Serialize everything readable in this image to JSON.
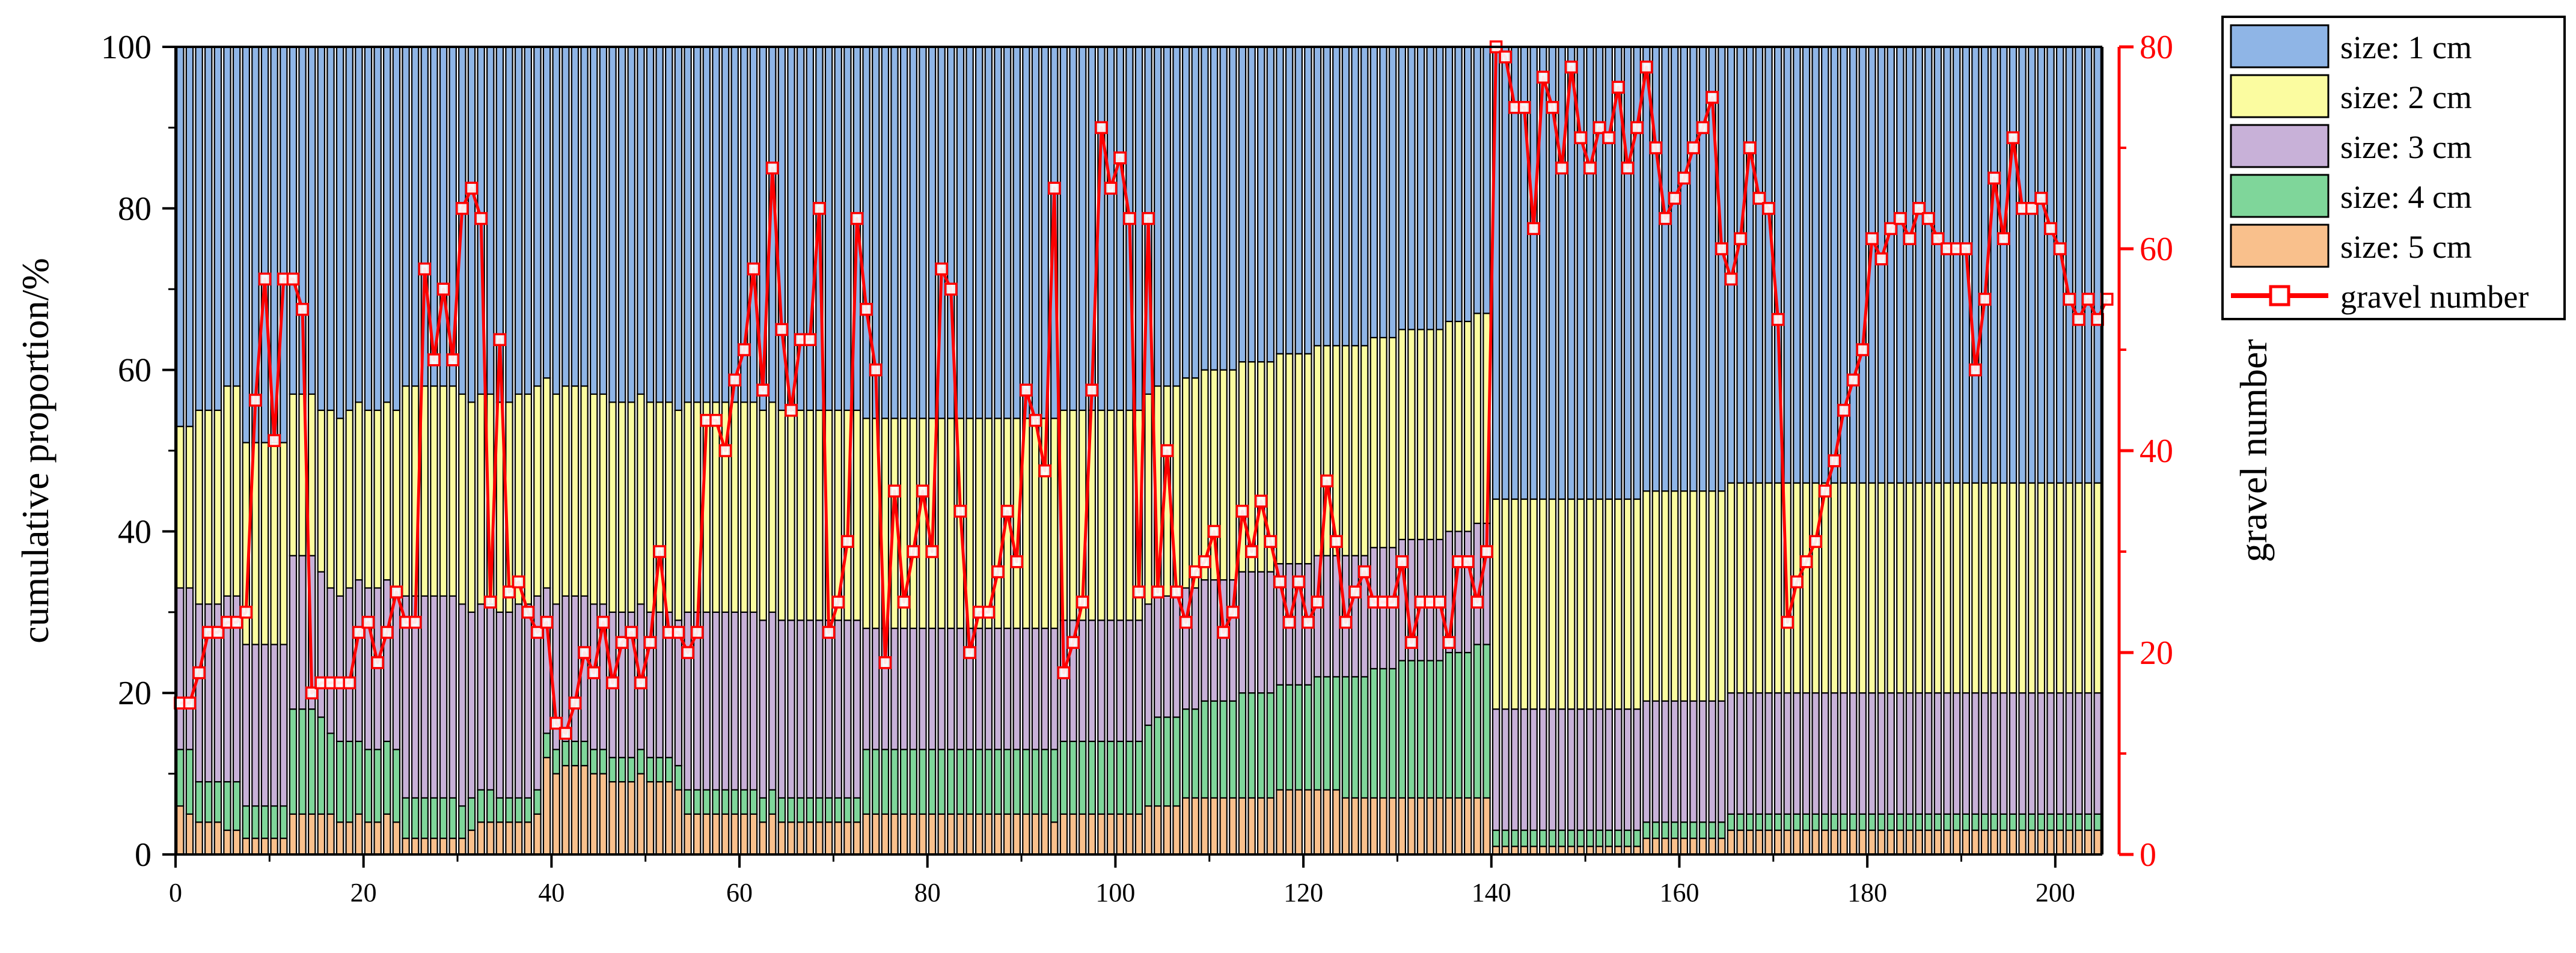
{
  "chart_data": {
    "type": "bar",
    "stacked": true,
    "n_bars": 205,
    "xlim": [
      0,
      205
    ],
    "x_ticks": [
      0,
      20,
      40,
      60,
      80,
      100,
      120,
      140,
      160,
      180,
      200
    ],
    "y_left": {
      "label": "cumulative proportion/%",
      "lim": [
        0,
        100
      ],
      "ticks": [
        0,
        20,
        40,
        60,
        80,
        100
      ]
    },
    "y_right": {
      "label": "gravel number",
      "lim": [
        0,
        80
      ],
      "ticks": [
        0,
        20,
        40,
        60,
        80
      ],
      "color": "#ff0000"
    },
    "legend": {
      "position": "top-right",
      "entries": [
        "size: 1 cm",
        "size: 2 cm",
        "size: 3 cm",
        "size: 4 cm",
        "size: 5 cm",
        "gravel number"
      ]
    },
    "series": [
      {
        "name": "size: 5 cm",
        "color": "#f9c08c",
        "values": [
          6,
          5,
          4,
          4,
          4,
          3,
          3,
          2,
          2,
          2,
          2,
          2,
          5,
          5,
          5,
          5,
          5,
          4,
          4,
          5,
          4,
          4,
          5,
          4,
          2,
          2,
          2,
          2,
          2,
          2,
          2,
          3,
          4,
          4,
          4,
          4,
          4,
          4,
          5,
          12,
          10,
          11,
          11,
          11,
          10,
          10,
          9,
          9,
          9,
          10,
          9,
          9,
          9,
          8,
          5,
          5,
          5,
          5,
          5,
          5,
          5,
          5,
          4,
          5,
          4,
          4,
          4,
          4,
          4,
          4,
          4,
          4,
          4,
          5,
          5,
          5,
          5,
          5,
          5,
          5,
          5,
          5,
          5,
          5,
          5,
          5,
          5,
          5,
          5,
          5,
          5,
          5,
          5,
          4,
          5,
          5,
          5,
          5,
          5,
          5,
          5,
          5,
          5,
          6,
          6,
          6,
          6,
          7,
          7,
          7,
          7,
          7,
          7,
          7,
          7,
          7,
          7,
          8,
          8,
          8,
          8,
          8,
          8,
          8,
          7,
          7,
          7,
          7,
          7,
          7,
          7,
          7,
          7,
          7,
          7,
          7,
          7,
          7,
          7,
          7,
          1,
          1,
          1,
          1,
          1,
          1,
          1,
          1,
          1,
          1,
          1,
          1,
          1,
          1,
          1,
          1,
          2,
          2,
          2,
          2,
          2,
          2,
          2,
          2,
          2,
          3,
          3,
          3,
          3,
          3,
          3,
          3,
          3,
          3,
          3,
          3,
          3,
          3,
          3,
          3,
          3,
          3,
          3,
          3,
          3,
          3,
          3,
          3,
          3,
          3,
          3,
          3,
          3,
          3,
          3,
          3,
          3,
          3,
          3,
          3,
          3,
          3,
          3,
          3,
          3
        ]
      },
      {
        "name": "size: 4 cm",
        "color": "#7fd69a",
        "values": [
          7,
          8,
          5,
          5,
          5,
          6,
          6,
          4,
          4,
          4,
          4,
          4,
          13,
          13,
          13,
          12,
          10,
          10,
          10,
          9,
          9,
          9,
          9,
          9,
          5,
          5,
          5,
          5,
          5,
          5,
          4,
          4,
          4,
          4,
          3,
          3,
          3,
          3,
          3,
          3,
          3,
          3,
          3,
          3,
          3,
          3,
          3,
          3,
          3,
          3,
          3,
          3,
          3,
          3,
          3,
          3,
          3,
          3,
          3,
          3,
          3,
          3,
          3,
          3,
          3,
          3,
          3,
          3,
          3,
          3,
          3,
          3,
          3,
          8,
          8,
          8,
          8,
          8,
          8,
          8,
          8,
          8,
          8,
          8,
          8,
          8,
          8,
          8,
          8,
          8,
          8,
          8,
          8,
          9,
          9,
          9,
          9,
          9,
          9,
          9,
          9,
          9,
          9,
          10,
          11,
          11,
          11,
          11,
          11,
          12,
          12,
          12,
          12,
          13,
          13,
          13,
          13,
          13,
          13,
          13,
          13,
          14,
          14,
          14,
          15,
          15,
          15,
          16,
          16,
          16,
          17,
          17,
          17,
          17,
          17,
          18,
          18,
          18,
          19,
          19,
          2,
          2,
          2,
          2,
          2,
          2,
          2,
          2,
          2,
          2,
          2,
          2,
          2,
          2,
          2,
          2,
          2,
          2,
          2,
          2,
          2,
          2,
          2,
          2,
          2,
          2,
          2,
          2,
          2,
          2,
          2,
          2,
          2,
          2,
          2,
          2,
          2,
          2,
          2,
          2,
          2,
          2,
          2,
          2,
          2,
          2,
          2,
          2,
          2,
          2,
          2,
          2,
          2,
          2,
          2,
          2,
          2,
          2,
          2,
          2,
          2,
          2,
          2,
          2,
          2
        ]
      },
      {
        "name": "size: 3 cm",
        "color": "#c8b1d8",
        "values": [
          20,
          20,
          22,
          22,
          22,
          23,
          23,
          20,
          20,
          20,
          20,
          20,
          19,
          19,
          19,
          18,
          18,
          18,
          19,
          20,
          20,
          20,
          20,
          20,
          25,
          25,
          25,
          25,
          25,
          25,
          25,
          23,
          23,
          23,
          23,
          23,
          24,
          24,
          24,
          18,
          18,
          18,
          18,
          18,
          18,
          18,
          18,
          18,
          18,
          18,
          18,
          18,
          18,
          18,
          22,
          22,
          22,
          22,
          22,
          22,
          22,
          22,
          22,
          22,
          22,
          22,
          22,
          22,
          22,
          22,
          22,
          22,
          22,
          15,
          15,
          15,
          15,
          15,
          15,
          15,
          15,
          15,
          15,
          15,
          15,
          15,
          15,
          15,
          15,
          15,
          15,
          15,
          15,
          15,
          15,
          15,
          15,
          15,
          15,
          15,
          15,
          15,
          15,
          15,
          15,
          15,
          15,
          15,
          15,
          15,
          15,
          15,
          15,
          15,
          15,
          15,
          15,
          15,
          15,
          15,
          15,
          15,
          15,
          15,
          15,
          15,
          15,
          15,
          15,
          15,
          15,
          15,
          15,
          15,
          15,
          15,
          15,
          15,
          15,
          15,
          15,
          15,
          15,
          15,
          15,
          15,
          15,
          15,
          15,
          15,
          15,
          15,
          15,
          15,
          15,
          15,
          15,
          15,
          15,
          15,
          15,
          15,
          15,
          15,
          15,
          15,
          15,
          15,
          15,
          15,
          15,
          15,
          15,
          15,
          15,
          15,
          15,
          15,
          15,
          15,
          15,
          15,
          15,
          15,
          15,
          15,
          15,
          15,
          15,
          15,
          15,
          15,
          15,
          15,
          15,
          15,
          15,
          15,
          15,
          15,
          15,
          15,
          15,
          15,
          15
        ]
      },
      {
        "name": "size: 2 cm",
        "color": "#fbfca0",
        "values": [
          20,
          20,
          24,
          24,
          24,
          26,
          26,
          25,
          25,
          25,
          25,
          25,
          20,
          20,
          20,
          20,
          22,
          22,
          22,
          22,
          22,
          22,
          22,
          22,
          26,
          26,
          26,
          26,
          26,
          26,
          26,
          26,
          26,
          26,
          26,
          26,
          26,
          26,
          26,
          26,
          26,
          26,
          26,
          26,
          26,
          26,
          26,
          26,
          26,
          26,
          26,
          26,
          26,
          26,
          26,
          26,
          26,
          26,
          26,
          26,
          26,
          26,
          26,
          26,
          26,
          26,
          26,
          26,
          26,
          26,
          26,
          26,
          26,
          26,
          26,
          26,
          26,
          26,
          26,
          26,
          26,
          26,
          26,
          26,
          26,
          26,
          26,
          26,
          26,
          26,
          26,
          26,
          26,
          26,
          26,
          26,
          26,
          26,
          26,
          26,
          26,
          26,
          26,
          26,
          26,
          26,
          26,
          26,
          26,
          26,
          26,
          26,
          26,
          26,
          26,
          26,
          26,
          26,
          26,
          26,
          26,
          26,
          26,
          26,
          26,
          26,
          26,
          26,
          26,
          26,
          26,
          26,
          26,
          26,
          26,
          26,
          26,
          26,
          26,
          26,
          26,
          26,
          26,
          26,
          26,
          26,
          26,
          26,
          26,
          26,
          26,
          26,
          26,
          26,
          26,
          26,
          26,
          26,
          26,
          26,
          26,
          26,
          26,
          26,
          26,
          26,
          26,
          26,
          26,
          26,
          26,
          26,
          26,
          26,
          26,
          26,
          26,
          26,
          26,
          26,
          26,
          26,
          26,
          26,
          26,
          26,
          26,
          26,
          26,
          26,
          26,
          26,
          26,
          26,
          26,
          26,
          26,
          26,
          26,
          26,
          26,
          26,
          26,
          26,
          26
        ]
      },
      {
        "name": "size: 1 cm",
        "color": "#8fb5e6",
        "fills_to": 100
      }
    ],
    "line_series": {
      "name": "gravel number",
      "color": "#ff0000",
      "values": [
        15,
        15,
        18,
        22,
        22,
        23,
        23,
        24,
        45,
        57,
        41,
        57,
        57,
        54,
        16,
        17,
        17,
        17,
        17,
        22,
        23,
        19,
        22,
        26,
        23,
        23,
        58,
        49,
        56,
        49,
        64,
        66,
        63,
        25,
        51,
        26,
        27,
        24,
        22,
        23,
        13,
        12,
        15,
        20,
        18,
        23,
        17,
        21,
        22,
        17,
        21,
        30,
        22,
        22,
        20,
        22,
        43,
        43,
        40,
        47,
        50,
        58,
        46,
        68,
        52,
        44,
        51,
        51,
        64,
        22,
        25,
        31,
        63,
        54,
        48,
        19,
        36,
        25,
        30,
        36,
        30,
        58,
        56,
        34,
        20,
        24,
        24,
        28,
        34,
        29,
        46,
        43,
        38,
        66,
        18,
        21,
        25,
        46,
        72,
        66,
        69,
        63,
        26,
        63,
        26,
        40,
        26,
        23,
        28,
        29,
        32,
        22,
        24,
        34,
        30,
        35,
        31,
        27,
        23,
        27,
        23,
        25,
        37,
        31,
        23,
        26,
        28,
        25,
        25,
        25,
        29,
        21,
        25,
        25,
        25,
        21,
        29,
        29,
        25,
        30,
        80,
        79,
        74,
        74,
        62,
        77,
        74,
        68,
        78,
        71,
        68,
        72,
        71,
        76,
        68,
        72,
        78,
        70,
        63,
        65,
        67,
        70,
        72,
        75,
        60,
        57,
        61,
        70,
        65,
        64,
        53,
        23,
        27,
        29,
        31,
        36,
        39,
        44,
        47,
        50,
        61,
        59,
        62,
        63,
        61,
        64,
        63,
        61,
        60,
        60,
        60,
        48,
        55,
        67,
        61,
        71,
        64,
        64,
        65,
        62,
        60,
        55,
        53,
        55,
        53,
        55
      ]
    }
  }
}
